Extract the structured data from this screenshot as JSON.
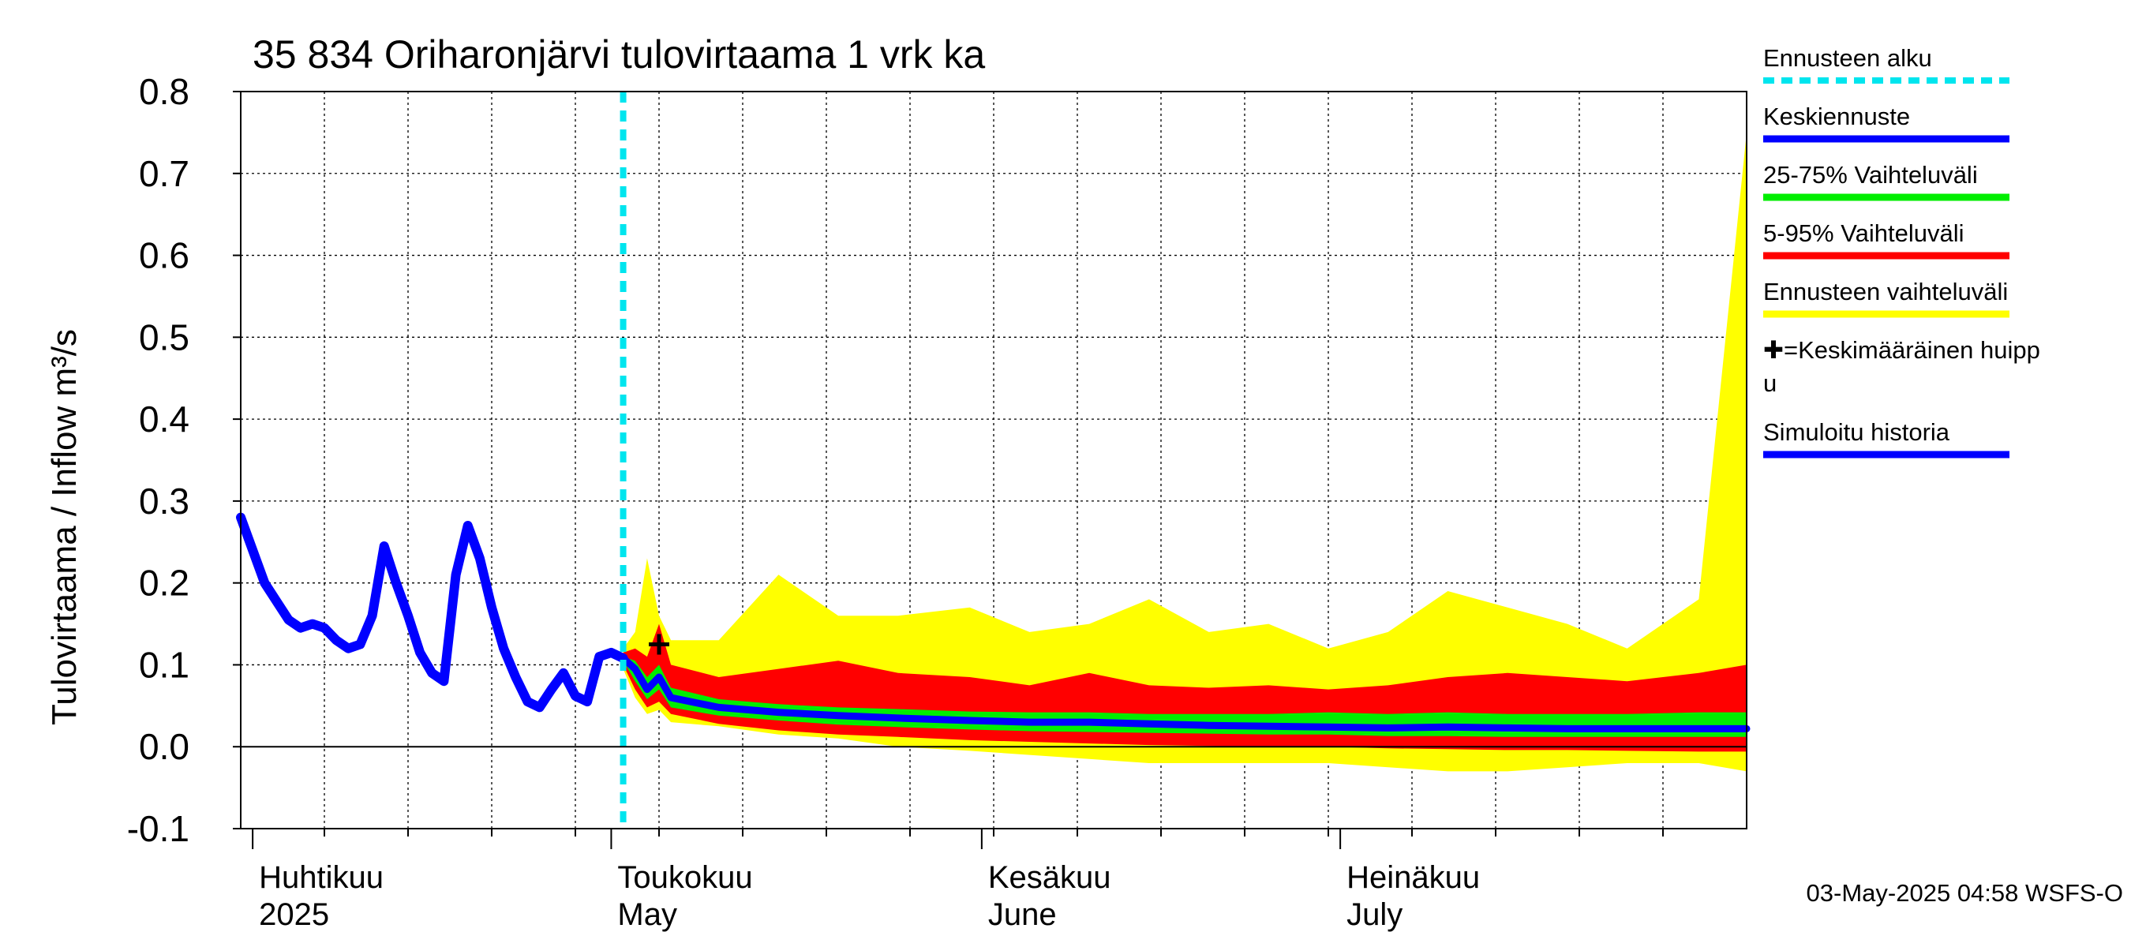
{
  "chart_data": {
    "type": "area",
    "title": "35 834 Oriharonjärvi tulovirtaama 1 vrk ka",
    "ylabel": "Tulovirtaama / Inflow    m³/s",
    "ylim": [
      -0.1,
      0.8
    ],
    "yticks": [
      "-0.1",
      "0.0",
      "0.1",
      "0.2",
      "0.3",
      "0.4",
      "0.5",
      "0.6",
      "0.7",
      "0.8"
    ],
    "x_start": "2025-03-31",
    "x_end": "2025-08-04",
    "forecast_start": "2025-05-02",
    "peak": {
      "date": "2025-05-05",
      "value": 0.125
    },
    "months": [
      {
        "line1": "Huhtikuu",
        "line2": "2025",
        "date": "2025-04-01"
      },
      {
        "line1": "Toukokuu",
        "line2": "May",
        "date": "2025-05-01"
      },
      {
        "line1": "Kesäkuu",
        "line2": "June",
        "date": "2025-06-01"
      },
      {
        "line1": "Heinäkuu",
        "line2": "July",
        "date": "2025-07-01"
      }
    ],
    "history": {
      "dates": [
        "2025-03-31",
        "2025-04-02",
        "2025-04-04",
        "2025-04-05",
        "2025-04-06",
        "2025-04-07",
        "2025-04-08",
        "2025-04-09",
        "2025-04-10",
        "2025-04-11",
        "2025-04-12",
        "2025-04-13",
        "2025-04-14",
        "2025-04-15",
        "2025-04-16",
        "2025-04-17",
        "2025-04-18",
        "2025-04-19",
        "2025-04-20",
        "2025-04-21",
        "2025-04-22",
        "2025-04-23",
        "2025-04-24",
        "2025-04-25",
        "2025-04-26",
        "2025-04-27",
        "2025-04-28",
        "2025-04-29",
        "2025-04-30",
        "2025-05-01",
        "2025-05-02"
      ],
      "values": [
        0.28,
        0.2,
        0.155,
        0.145,
        0.15,
        0.145,
        0.13,
        0.12,
        0.125,
        0.16,
        0.245,
        0.2,
        0.16,
        0.115,
        0.09,
        0.08,
        0.21,
        0.27,
        0.23,
        0.17,
        0.12,
        0.085,
        0.055,
        0.048,
        0.07,
        0.09,
        0.062,
        0.055,
        0.11,
        0.115,
        0.108
      ]
    },
    "forecast": {
      "dates": [
        "2025-05-02",
        "2025-05-03",
        "2025-05-04",
        "2025-05-05",
        "2025-05-06",
        "2025-05-10",
        "2025-05-15",
        "2025-05-20",
        "2025-05-25",
        "2025-05-31",
        "2025-06-05",
        "2025-06-10",
        "2025-06-15",
        "2025-06-20",
        "2025-06-25",
        "2025-06-30",
        "2025-07-05",
        "2025-07-10",
        "2025-07-15",
        "2025-07-20",
        "2025-07-25",
        "2025-07-31",
        "2025-08-04"
      ],
      "median": [
        0.108,
        0.095,
        0.07,
        0.085,
        0.06,
        0.048,
        0.042,
        0.038,
        0.035,
        0.032,
        0.03,
        0.03,
        0.028,
        0.026,
        0.025,
        0.024,
        0.023,
        0.024,
        0.023,
        0.022,
        0.022,
        0.022,
        0.022
      ],
      "p25": [
        0.105,
        0.08,
        0.058,
        0.07,
        0.048,
        0.038,
        0.032,
        0.027,
        0.024,
        0.021,
        0.019,
        0.018,
        0.017,
        0.016,
        0.015,
        0.015,
        0.013,
        0.013,
        0.012,
        0.012,
        0.012,
        0.012,
        0.012
      ],
      "p75": [
        0.11,
        0.105,
        0.085,
        0.1,
        0.072,
        0.058,
        0.052,
        0.048,
        0.046,
        0.043,
        0.042,
        0.042,
        0.04,
        0.04,
        0.04,
        0.042,
        0.04,
        0.042,
        0.04,
        0.04,
        0.04,
        0.042,
        0.042
      ],
      "p5": [
        0.1,
        0.07,
        0.048,
        0.055,
        0.04,
        0.028,
        0.02,
        0.015,
        0.012,
        0.008,
        0.006,
        0.004,
        0.002,
        0.001,
        0.0,
        0.0,
        -0.002,
        -0.003,
        -0.004,
        -0.004,
        -0.005,
        -0.006,
        -0.006
      ],
      "p95": [
        0.115,
        0.12,
        0.11,
        0.15,
        0.1,
        0.085,
        0.095,
        0.105,
        0.09,
        0.085,
        0.075,
        0.09,
        0.075,
        0.072,
        0.075,
        0.07,
        0.075,
        0.085,
        0.09,
        0.085,
        0.08,
        0.09,
        0.1
      ],
      "min": [
        0.095,
        0.06,
        0.04,
        0.045,
        0.03,
        0.025,
        0.015,
        0.01,
        0.0,
        -0.005,
        -0.01,
        -0.015,
        -0.02,
        -0.02,
        -0.02,
        -0.02,
        -0.025,
        -0.03,
        -0.03,
        -0.025,
        -0.02,
        -0.02,
        -0.03
      ],
      "max": [
        0.12,
        0.14,
        0.23,
        0.16,
        0.13,
        0.13,
        0.21,
        0.16,
        0.16,
        0.17,
        0.14,
        0.15,
        0.18,
        0.14,
        0.15,
        0.12,
        0.14,
        0.19,
        0.17,
        0.15,
        0.12,
        0.18,
        0.75
      ]
    },
    "legend": [
      {
        "label": "Ennusteen alku",
        "color": "#00e5ee",
        "style": "dashed"
      },
      {
        "label": "Keskiennuste",
        "color": "#0000ff",
        "style": "solid"
      },
      {
        "label": "25-75% Vaihteluväli",
        "color": "#00ee00",
        "style": "solid"
      },
      {
        "label": "5-95% Vaihteluväli",
        "color": "#ff0000",
        "style": "solid"
      },
      {
        "label": "Ennusteen vaihteluväli",
        "color": "#ffff00",
        "style": "solid"
      },
      {
        "label": "✚=Keskimääräinen huipp",
        "label2": "u",
        "color": "",
        "style": "none"
      },
      {
        "label": "Simuloitu historia",
        "color": "#0000ff",
        "style": "solid"
      }
    ],
    "colors": {
      "history": "#0000ff",
      "median": "#0000ff",
      "p25_75": "#00ee00",
      "p5_95": "#ff0000",
      "range": "#ffff00",
      "forecast_line": "#00e5ee"
    }
  },
  "footer": {
    "timestamp": "03-May-2025 04:58 WSFS-O"
  }
}
